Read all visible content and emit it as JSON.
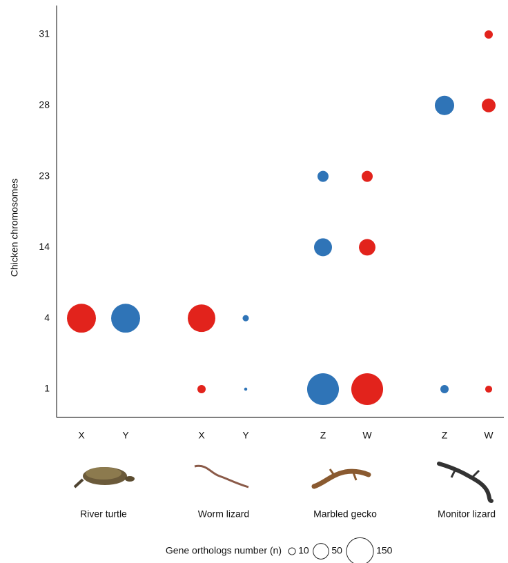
{
  "chart_data": {
    "type": "bubble",
    "y_label": "Chicken chromosomes",
    "y_categories": [
      "1",
      "4",
      "14",
      "23",
      "28",
      "31"
    ],
    "groups": [
      "River turtle",
      "Worm lizard",
      "Marbled gecko",
      "Monitor lizard"
    ],
    "series": [
      {
        "name": "X",
        "color": "#e2231c",
        "values": [
          null,
          172,
          null,
          null,
          null,
          null
        ]
      },
      {
        "name": "Y",
        "color": "#2f74b7",
        "values": [
          null,
          172,
          null,
          null,
          null,
          null
        ]
      },
      {
        "name": "X",
        "color": "#e2231c",
        "values": [
          14,
          156,
          null,
          null,
          null,
          null
        ]
      },
      {
        "name": "Y",
        "color": "#2f74b7",
        "values": [
          2,
          8,
          null,
          null,
          null,
          null
        ]
      },
      {
        "name": "Z",
        "color": "#2f74b7",
        "values": [
          207,
          null,
          66,
          25,
          null,
          null
        ]
      },
      {
        "name": "W",
        "color": "#e2231c",
        "values": [
          207,
          null,
          56,
          25,
          null,
          null
        ]
      },
      {
        "name": "Z",
        "color": "#2f74b7",
        "values": [
          14,
          null,
          null,
          null,
          77,
          null
        ]
      },
      {
        "name": "W",
        "color": "#e2231c",
        "values": [
          10,
          null,
          null,
          null,
          39,
          14
        ]
      }
    ],
    "size_legend": {
      "title": "Gene orthologs number (n)",
      "values": [
        10,
        50,
        150
      ]
    }
  }
}
